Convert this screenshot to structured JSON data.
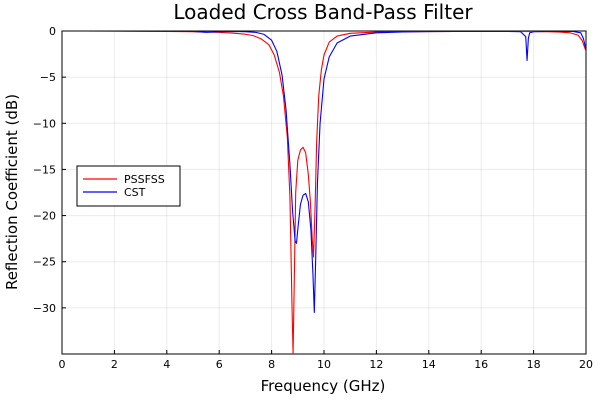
{
  "chart_data": {
    "type": "line",
    "title": "Loaded Cross Band-Pass Filter",
    "xlabel": "Frequency (GHz)",
    "ylabel": "Reflection Coefficient (dB)",
    "xlim": [
      0,
      20
    ],
    "ylim": [
      -35,
      0
    ],
    "xticks": [
      0,
      2,
      4,
      6,
      8,
      10,
      12,
      14,
      16,
      18,
      20
    ],
    "yticks": [
      0,
      -5,
      -10,
      -15,
      -20,
      -25,
      -30
    ],
    "grid": true,
    "legend_position": "left-middle",
    "series": [
      {
        "name": "PSSFSS",
        "color": "#ff0000",
        "x": [
          1.0,
          2.0,
          3.0,
          4.0,
          5.0,
          6.0,
          6.5,
          7.0,
          7.3,
          7.6,
          7.9,
          8.1,
          8.3,
          8.45,
          8.6,
          8.7,
          8.78,
          8.82,
          8.86,
          8.92,
          9.0,
          9.1,
          9.2,
          9.3,
          9.4,
          9.48,
          9.55,
          9.6,
          9.66,
          9.72,
          9.8,
          9.9,
          10.0,
          10.2,
          10.5,
          11.0,
          12.0,
          13.0,
          14.0,
          15.0,
          16.0,
          17.0,
          17.5,
          18.0,
          18.5,
          19.0,
          19.4,
          19.7,
          19.85,
          20.0
        ],
        "y": [
          -0.01,
          -0.02,
          -0.03,
          -0.05,
          -0.08,
          -0.15,
          -0.22,
          -0.35,
          -0.5,
          -0.85,
          -1.5,
          -2.6,
          -4.5,
          -7.0,
          -11.5,
          -18.0,
          -30.0,
          -35.0,
          -28.0,
          -17.5,
          -14.0,
          -12.9,
          -12.6,
          -13.2,
          -15.5,
          -18.5,
          -22.5,
          -24.5,
          -19.0,
          -12.0,
          -7.0,
          -4.2,
          -2.6,
          -1.2,
          -0.55,
          -0.25,
          -0.12,
          -0.08,
          -0.06,
          -0.05,
          -0.05,
          -0.05,
          -0.05,
          -0.06,
          -0.08,
          -0.12,
          -0.2,
          -0.45,
          -1.0,
          -2.2
        ]
      },
      {
        "name": "CST",
        "color": "#0000ff",
        "x": [
          1.0,
          2.0,
          3.0,
          4.0,
          5.0,
          5.5,
          6.0,
          6.5,
          7.0,
          7.4,
          7.7,
          8.0,
          8.2,
          8.4,
          8.55,
          8.7,
          8.8,
          8.9,
          8.95,
          9.0,
          9.1,
          9.2,
          9.3,
          9.4,
          9.5,
          9.58,
          9.63,
          9.68,
          9.75,
          9.85,
          10.0,
          10.2,
          10.5,
          11.0,
          12.0,
          13.0,
          14.0,
          15.0,
          16.0,
          17.0,
          17.5,
          17.7,
          17.75,
          17.8,
          17.85,
          18.0,
          18.5,
          19.0,
          19.5,
          19.8,
          19.9,
          20.0
        ],
        "y": [
          0.0,
          0.0,
          -0.01,
          -0.02,
          -0.05,
          -0.15,
          -0.08,
          -0.05,
          -0.08,
          -0.15,
          -0.35,
          -1.0,
          -2.2,
          -4.8,
          -8.5,
          -14.5,
          -19.5,
          -22.8,
          -23.0,
          -21.5,
          -18.8,
          -17.8,
          -17.6,
          -18.5,
          -21.5,
          -26.5,
          -30.5,
          -25.0,
          -16.5,
          -10.0,
          -5.2,
          -2.8,
          -1.3,
          -0.55,
          -0.2,
          -0.1,
          -0.06,
          -0.05,
          -0.05,
          -0.05,
          -0.07,
          -0.6,
          -3.2,
          -0.8,
          -0.2,
          -0.08,
          -0.05,
          -0.05,
          -0.05,
          -0.2,
          -0.8,
          -2.0
        ]
      }
    ]
  }
}
